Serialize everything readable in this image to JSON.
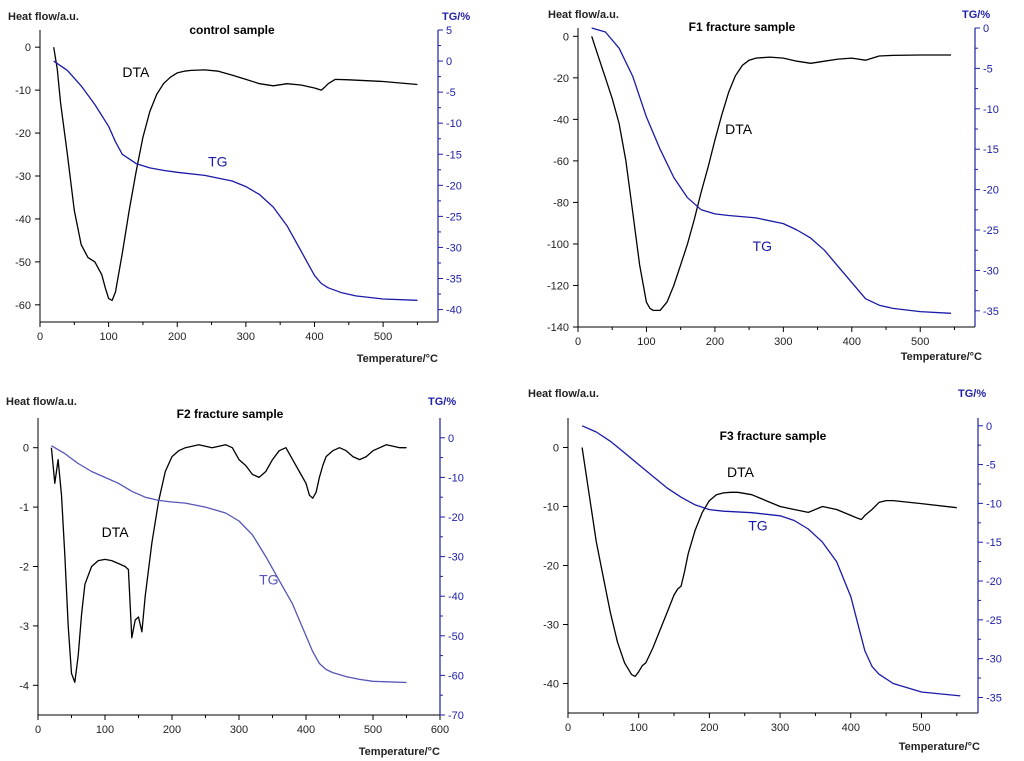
{
  "colors": {
    "dta": "#000000",
    "tg": "#1a1aa8",
    "tg_light": "#5555b8",
    "right_axis": "#2020a8",
    "left_axis": "#000000"
  },
  "chart_data": [
    {
      "type": "line",
      "title": "control sample",
      "ylabel": "Heat flow/a.u.",
      "ylabel_right": "TG/%",
      "xlabel": "Temperature/°C",
      "xlim": [
        0,
        580
      ],
      "ylim": [
        -64,
        4
      ],
      "ylim_right": [
        -42,
        5
      ],
      "xticks": [
        0,
        100,
        200,
        300,
        400,
        500
      ],
      "yticks": [
        0,
        -10,
        -20,
        -30,
        -40,
        -50,
        -60
      ],
      "yticks_right": [
        5,
        0,
        -5,
        -10,
        -15,
        -20,
        -25,
        -30,
        -35,
        -40
      ],
      "series": [
        {
          "name": "DTA",
          "axis": "left",
          "label": "DTA",
          "label_at": [
            120,
            -7
          ],
          "x": [
            20,
            25,
            30,
            40,
            50,
            60,
            70,
            80,
            90,
            95,
            100,
            105,
            110,
            120,
            130,
            140,
            150,
            160,
            170,
            180,
            190,
            200,
            210,
            220,
            240,
            260,
            280,
            300,
            320,
            340,
            360,
            380,
            400,
            410,
            415,
            420,
            430,
            450,
            500,
            550
          ],
          "y": [
            0,
            -5,
            -13,
            -25,
            -38,
            -46,
            -49,
            -50,
            -53,
            -56,
            -58.5,
            -59,
            -57,
            -48,
            -38,
            -29,
            -21,
            -15,
            -11,
            -8.5,
            -7,
            -6,
            -5.6,
            -5.4,
            -5.3,
            -5.6,
            -6.5,
            -7.5,
            -8.5,
            -9,
            -8.5,
            -8.8,
            -9.5,
            -10,
            -9.3,
            -8.5,
            -7.5,
            -7.6,
            -8,
            -8.7
          ]
        },
        {
          "name": "TG",
          "axis": "right",
          "label": "TG",
          "label_at": [
            245,
            -17
          ],
          "x": [
            20,
            40,
            60,
            80,
            100,
            110,
            120,
            140,
            160,
            180,
            200,
            240,
            280,
            300,
            320,
            340,
            360,
            380,
            400,
            410,
            420,
            440,
            460,
            500,
            550
          ],
          "y": [
            0,
            -1.5,
            -4,
            -7,
            -10.5,
            -13,
            -15,
            -16.5,
            -17.2,
            -17.6,
            -17.9,
            -18.4,
            -19.3,
            -20.2,
            -21.5,
            -23.5,
            -26.5,
            -30.5,
            -34.5,
            -35.8,
            -36.5,
            -37.3,
            -37.8,
            -38.3,
            -38.5
          ]
        }
      ]
    },
    {
      "type": "line",
      "title": "F1 fracture sample",
      "ylabel": "Heat flow/a.u.",
      "ylabel_right": "TG/%",
      "xlabel": "Temperature/°C",
      "xlim": [
        0,
        580
      ],
      "ylim": [
        -140,
        4
      ],
      "ylim_right": [
        -37,
        0
      ],
      "xticks": [
        0,
        100,
        200,
        300,
        400,
        500
      ],
      "yticks": [
        0,
        -20,
        -40,
        -60,
        -80,
        -100,
        -120,
        -140
      ],
      "yticks_right": [
        0,
        -5,
        -10,
        -15,
        -20,
        -25,
        -30,
        -35
      ],
      "series": [
        {
          "name": "DTA",
          "axis": "left",
          "label": "DTA",
          "label_at": [
            215,
            -47
          ],
          "x": [
            20,
            30,
            40,
            50,
            60,
            70,
            80,
            90,
            100,
            105,
            110,
            120,
            130,
            140,
            150,
            160,
            170,
            180,
            190,
            200,
            210,
            220,
            230,
            240,
            250,
            260,
            280,
            300,
            320,
            340,
            360,
            380,
            400,
            420,
            430,
            440,
            460,
            500,
            545
          ],
          "y": [
            0,
            -10,
            -20,
            -30,
            -42,
            -60,
            -85,
            -110,
            -128,
            -131,
            -132,
            -132,
            -128,
            -120,
            -110,
            -100,
            -88,
            -75,
            -63,
            -50,
            -38,
            -27,
            -19,
            -14,
            -11.5,
            -10.5,
            -10,
            -10.5,
            -12,
            -13,
            -12,
            -11,
            -10.5,
            -11.5,
            -10.5,
            -9.5,
            -9.2,
            -9,
            -9
          ]
        },
        {
          "name": "TG",
          "axis": "right",
          "label": "TG",
          "label_at": [
            255,
            -27.6
          ],
          "x": [
            20,
            40,
            60,
            80,
            100,
            120,
            140,
            160,
            180,
            200,
            220,
            260,
            300,
            320,
            340,
            360,
            380,
            400,
            420,
            440,
            460,
            500,
            545
          ],
          "y": [
            0,
            -0.5,
            -2.5,
            -6,
            -11,
            -15,
            -18.5,
            -21,
            -22.5,
            -23,
            -23.2,
            -23.5,
            -24.2,
            -25,
            -26,
            -27.5,
            -29.5,
            -31.5,
            -33.5,
            -34.3,
            -34.7,
            -35.1,
            -35.3
          ]
        }
      ]
    },
    {
      "type": "line",
      "title": "F2 fracture sample",
      "ylabel": "Heat flow/a.u.",
      "ylabel_right": "TG/%",
      "xlabel": "Temperature/°C",
      "xlim": [
        0,
        600
      ],
      "ylim": [
        -4.5,
        0.5
      ],
      "ylim_right": [
        -70,
        5
      ],
      "xticks": [
        0,
        100,
        200,
        300,
        400,
        500,
        600
      ],
      "yticks": [
        0,
        -1,
        -2,
        -3,
        -4
      ],
      "yticks_right": [
        0,
        -10,
        -20,
        -30,
        -40,
        -50,
        -60,
        -70
      ],
      "series": [
        {
          "name": "DTA",
          "axis": "left",
          "label": "DTA",
          "label_at": [
            95,
            -1.5
          ],
          "x": [
            20,
            25,
            30,
            35,
            40,
            45,
            50,
            55,
            60,
            65,
            70,
            80,
            90,
            100,
            110,
            120,
            130,
            135,
            140,
            145,
            150,
            155,
            160,
            170,
            180,
            190,
            200,
            210,
            220,
            240,
            260,
            280,
            290,
            300,
            310,
            320,
            330,
            340,
            350,
            360,
            370,
            380,
            390,
            400,
            405,
            410,
            415,
            420,
            425,
            430,
            440,
            450,
            460,
            470,
            480,
            490,
            500,
            520,
            540,
            550
          ],
          "y": [
            0,
            -0.6,
            -0.2,
            -0.8,
            -1.8,
            -3,
            -3.8,
            -3.95,
            -3.5,
            -2.8,
            -2.3,
            -2,
            -1.9,
            -1.88,
            -1.9,
            -1.95,
            -2,
            -2.05,
            -3.2,
            -2.9,
            -2.85,
            -3.1,
            -2.5,
            -1.6,
            -0.9,
            -0.4,
            -0.15,
            -0.05,
            0,
            0.05,
            0,
            0.05,
            0,
            -0.2,
            -0.3,
            -0.45,
            -0.5,
            -0.4,
            -0.2,
            -0.05,
            0,
            -0.2,
            -0.4,
            -0.6,
            -0.8,
            -0.85,
            -0.75,
            -0.5,
            -0.3,
            -0.15,
            -0.05,
            0,
            -0.05,
            -0.15,
            -0.2,
            -0.15,
            -0.05,
            0.05,
            0,
            0
          ]
        },
        {
          "name": "TG",
          "axis": "right",
          "label": "TG",
          "label_at": [
            330,
            -37
          ],
          "x": [
            20,
            40,
            60,
            80,
            100,
            120,
            140,
            160,
            180,
            200,
            220,
            250,
            280,
            300,
            320,
            340,
            360,
            380,
            390,
            400,
            410,
            420,
            430,
            440,
            460,
            480,
            500,
            550
          ],
          "y": [
            -2,
            -4,
            -6.5,
            -8.5,
            -10,
            -11.5,
            -13.5,
            -15,
            -15.8,
            -16.2,
            -16.5,
            -17.5,
            -19,
            -21,
            -24.5,
            -30,
            -36,
            -42,
            -46,
            -50,
            -54,
            -57,
            -58.5,
            -59.3,
            -60.3,
            -61,
            -61.5,
            -61.8
          ]
        }
      ]
    },
    {
      "type": "line",
      "title": "F3 fracture sample",
      "ylabel": "Heat flow/a.u.",
      "ylabel_right": "TG/%",
      "xlabel": "Temperature/°C",
      "xlim": [
        0,
        580
      ],
      "ylim": [
        -45,
        5
      ],
      "ylim_right": [
        -37,
        1
      ],
      "xticks": [
        0,
        100,
        200,
        300,
        400,
        500
      ],
      "yticks": [
        0,
        -10,
        -20,
        -30,
        -40
      ],
      "yticks_right": [
        0,
        -5,
        -10,
        -15,
        -20,
        -25,
        -30,
        -35
      ],
      "series": [
        {
          "name": "DTA",
          "axis": "left",
          "label": "DTA",
          "label_at": [
            225,
            -5
          ],
          "x": [
            20,
            30,
            40,
            50,
            60,
            70,
            80,
            90,
            95,
            100,
            105,
            110,
            120,
            130,
            140,
            150,
            155,
            160,
            165,
            170,
            180,
            190,
            200,
            210,
            220,
            230,
            240,
            260,
            280,
            300,
            320,
            340,
            360,
            380,
            400,
            410,
            415,
            420,
            430,
            440,
            450,
            460,
            500,
            550
          ],
          "y": [
            0,
            -8,
            -16,
            -22,
            -28,
            -33,
            -36.5,
            -38.5,
            -38.8,
            -38,
            -37,
            -36.5,
            -34,
            -31,
            -28,
            -25,
            -24,
            -23.5,
            -21,
            -18,
            -14,
            -11,
            -9,
            -8,
            -7.7,
            -7.6,
            -7.6,
            -8,
            -9,
            -10,
            -10.5,
            -11,
            -10,
            -10.5,
            -11.5,
            -12,
            -12.2,
            -11.5,
            -10.5,
            -9.3,
            -9,
            -9,
            -9.5,
            -10.2
          ]
        },
        {
          "name": "TG",
          "axis": "right",
          "label": "TG",
          "label_at": [
            255,
            -13.5
          ],
          "x": [
            20,
            40,
            60,
            80,
            100,
            120,
            140,
            160,
            180,
            200,
            220,
            260,
            300,
            320,
            340,
            360,
            380,
            400,
            410,
            420,
            430,
            440,
            460,
            500,
            555
          ],
          "y": [
            0,
            -0.8,
            -2,
            -3.5,
            -5,
            -6.5,
            -8,
            -9.2,
            -10.2,
            -10.8,
            -11,
            -11.2,
            -11.6,
            -12.2,
            -13.3,
            -15,
            -17.5,
            -22,
            -25.5,
            -29,
            -31,
            -32,
            -33.2,
            -34.3,
            -34.8
          ]
        }
      ]
    }
  ]
}
